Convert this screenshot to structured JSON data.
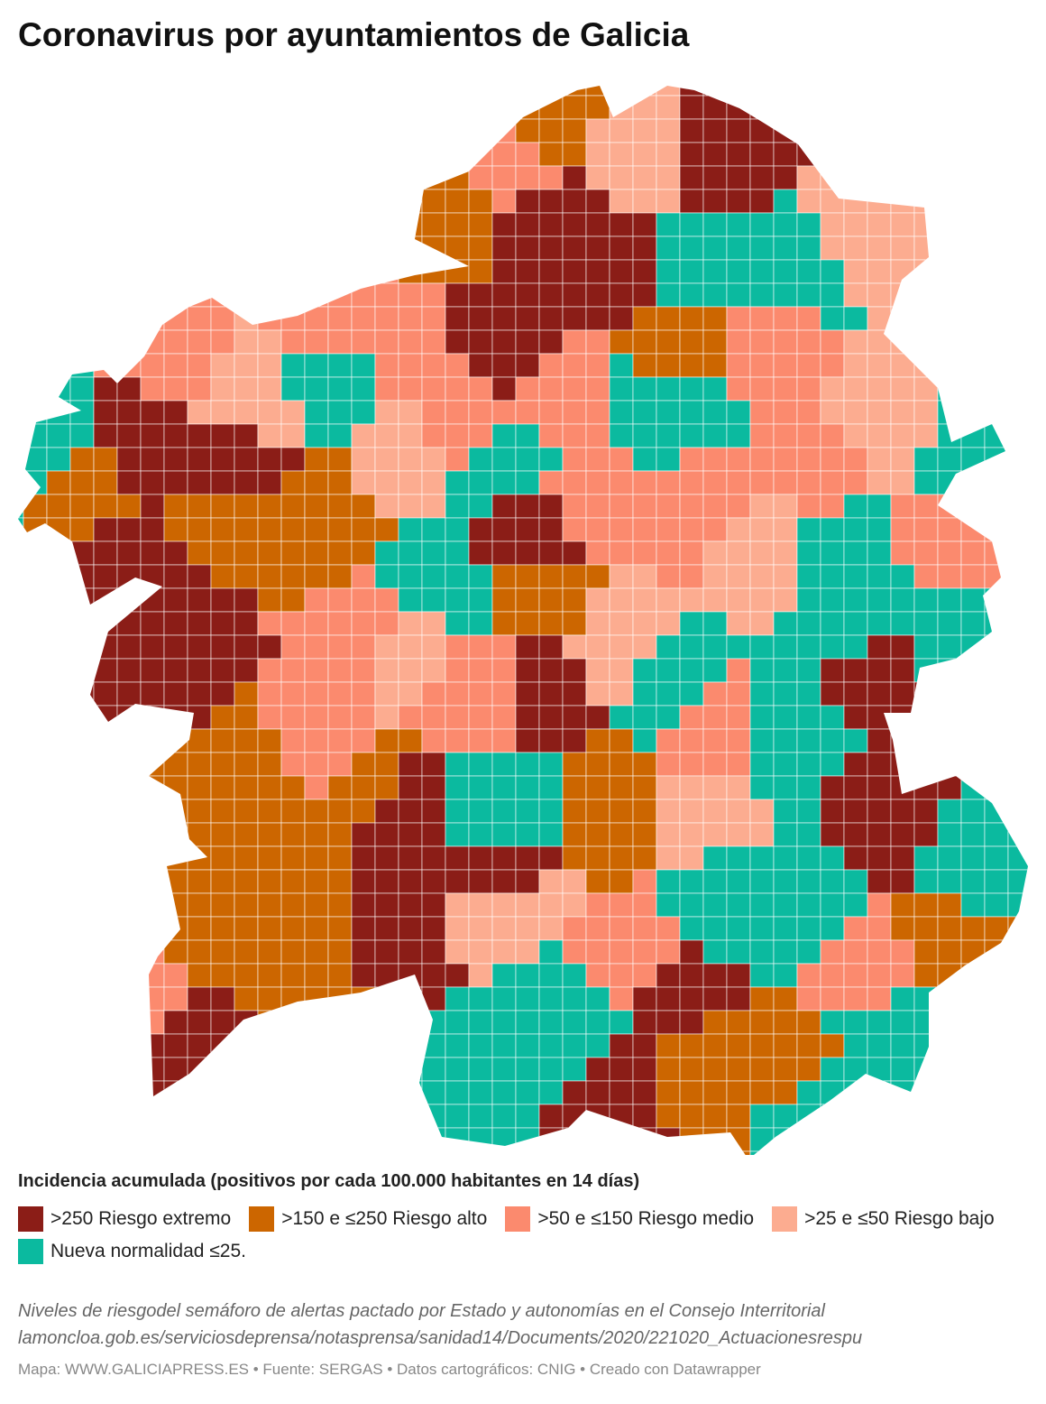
{
  "header": {
    "title": "Coronavirus por ayuntamientos de Galicia"
  },
  "legend": {
    "title": "Incidencia acumulada (positivos por cada 100.000 habitantes en 14 días)",
    "items": [
      {
        "label": ">250 Riesgo extremo",
        "color": "#8b1d17"
      },
      {
        "label": ">150 e ≤250 Riesgo alto",
        "color": "#cc6600"
      },
      {
        "label": ">50 e ≤150 Riesgo medio",
        "color": "#fb8a6e"
      },
      {
        "label": ">25 e ≤50 Riesgo bajo",
        "color": "#fcac90"
      },
      {
        "label": "Nueva normalidad ≤25.",
        "color": "#0bba9f"
      }
    ]
  },
  "notes": {
    "description": "Niveles de riesgodel semáforo de alertas pactado por Estado y autonomías en el Consejo Interritorial",
    "link": "lamoncloa.gob.es/serviciosdeprensa/notasprensa/sanidad14/Documents/2020/221020_Actuacionesrespu",
    "footer": "Mapa: WWW.GALICIAPRESS.ES • Fuente: SERGAS • Datos cartográficos: CNIG • Creado con Datawrapper"
  }
}
